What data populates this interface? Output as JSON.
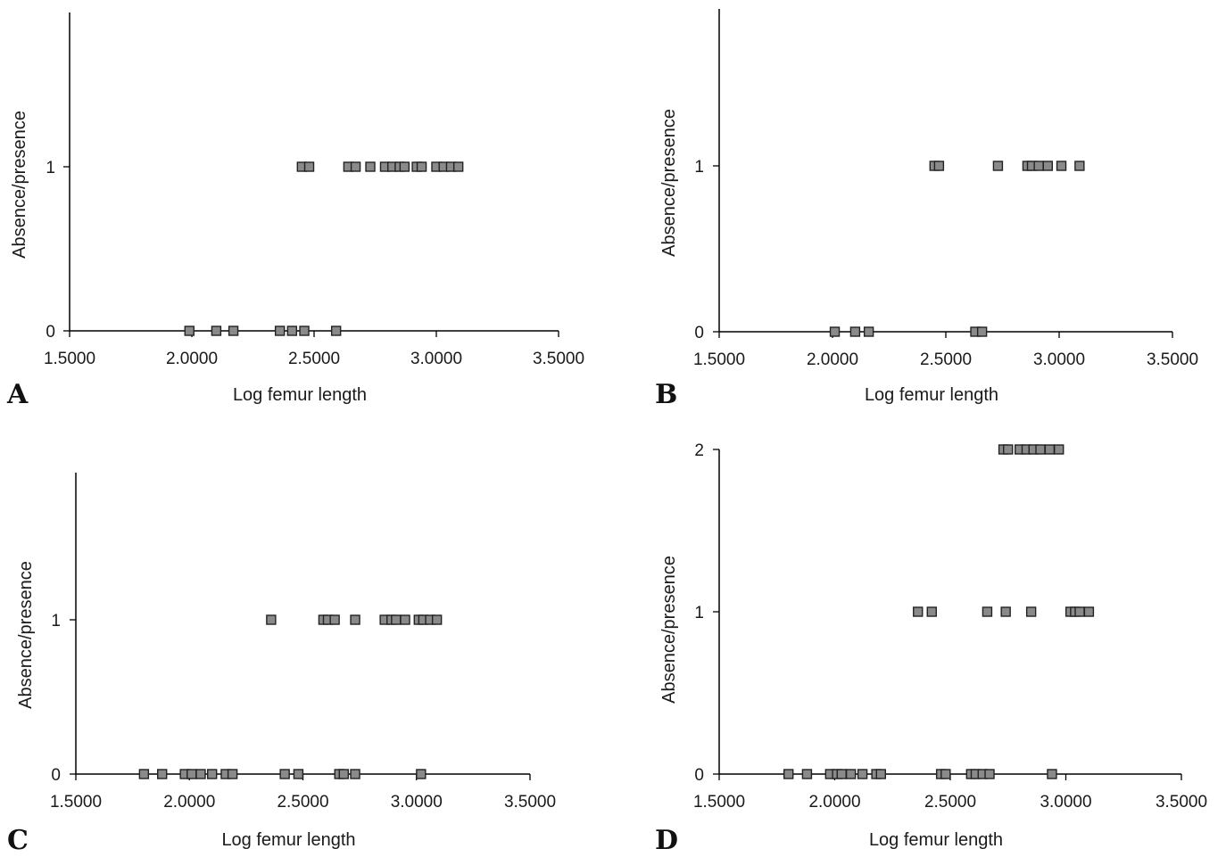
{
  "chart_data": [
    {
      "panel": "A",
      "type": "scatter",
      "xlabel": "Log femur length",
      "ylabel": "Absence/presence",
      "xlim": [
        1.5,
        3.5
      ],
      "ylim": [
        0,
        2
      ],
      "xticks": [
        "1.5000",
        "2.0000",
        "2.5000",
        "3.0000",
        "3.5000"
      ],
      "yticks": [
        "0",
        "1"
      ],
      "marker_color": "#8a8a8a",
      "points": [
        [
          1.99,
          0
        ],
        [
          2.1,
          0
        ],
        [
          2.17,
          0
        ],
        [
          2.36,
          0
        ],
        [
          2.41,
          0
        ],
        [
          2.46,
          0
        ],
        [
          2.59,
          0
        ],
        [
          2.45,
          1
        ],
        [
          2.48,
          1
        ],
        [
          2.64,
          1
        ],
        [
          2.67,
          1
        ],
        [
          2.73,
          1
        ],
        [
          2.79,
          1
        ],
        [
          2.82,
          1
        ],
        [
          2.85,
          1
        ],
        [
          2.87,
          1
        ],
        [
          2.92,
          1
        ],
        [
          2.94,
          1
        ],
        [
          3.0,
          1
        ],
        [
          3.03,
          1
        ],
        [
          3.06,
          1
        ],
        [
          3.09,
          1
        ]
      ]
    },
    {
      "panel": "B",
      "type": "scatter",
      "xlabel": "Log femur length",
      "ylabel": "Absence/presence",
      "xlim": [
        1.5,
        3.5
      ],
      "ylim": [
        0,
        2
      ],
      "xticks": [
        "1.5000",
        "2.0000",
        "2.5000",
        "3.0000",
        "3.5000"
      ],
      "yticks": [
        "0",
        "1"
      ],
      "marker_color": "#8a8a8a",
      "points": [
        [
          2.01,
          0
        ],
        [
          2.1,
          0
        ],
        [
          2.16,
          0
        ],
        [
          2.63,
          0
        ],
        [
          2.66,
          0
        ],
        [
          2.45,
          1
        ],
        [
          2.47,
          1
        ],
        [
          2.73,
          1
        ],
        [
          2.86,
          1
        ],
        [
          2.88,
          1
        ],
        [
          2.91,
          1
        ],
        [
          2.95,
          1
        ],
        [
          3.01,
          1
        ],
        [
          3.09,
          1
        ]
      ]
    },
    {
      "panel": "C",
      "type": "scatter",
      "xlabel": "Log femur length",
      "ylabel": "Absence/presence",
      "xlim": [
        1.5,
        3.5
      ],
      "ylim": [
        0,
        2
      ],
      "xticks": [
        "1.5000",
        "2.0000",
        "2.5000",
        "3.0000",
        "3.5000"
      ],
      "yticks": [
        "0",
        "1"
      ],
      "marker_color": "#8a8a8a",
      "points": [
        [
          1.8,
          0
        ],
        [
          1.88,
          0
        ],
        [
          1.98,
          0
        ],
        [
          2.01,
          0
        ],
        [
          2.05,
          0
        ],
        [
          2.1,
          0
        ],
        [
          2.16,
          0
        ],
        [
          2.19,
          0
        ],
        [
          2.42,
          0
        ],
        [
          2.48,
          0
        ],
        [
          2.66,
          0
        ],
        [
          2.68,
          0
        ],
        [
          2.73,
          0
        ],
        [
          3.02,
          0
        ],
        [
          2.36,
          1
        ],
        [
          2.59,
          1
        ],
        [
          2.61,
          1
        ],
        [
          2.64,
          1
        ],
        [
          2.73,
          1
        ],
        [
          2.86,
          1
        ],
        [
          2.89,
          1
        ],
        [
          2.91,
          1
        ],
        [
          2.95,
          1
        ],
        [
          3.01,
          1
        ],
        [
          3.03,
          1
        ],
        [
          3.06,
          1
        ],
        [
          3.09,
          1
        ]
      ]
    },
    {
      "panel": "D",
      "type": "scatter",
      "xlabel": "Log femur length",
      "ylabel": "Absence/presence",
      "xlim": [
        1.5,
        3.5
      ],
      "ylim": [
        0,
        2
      ],
      "xticks": [
        "1.5000",
        "2.0000",
        "2.5000",
        "3.0000",
        "3.5000"
      ],
      "yticks": [
        "0",
        "1",
        "2"
      ],
      "marker_color": "#8a8a8a",
      "points": [
        [
          1.8,
          0
        ],
        [
          1.88,
          0
        ],
        [
          1.98,
          0
        ],
        [
          2.01,
          0
        ],
        [
          2.03,
          0
        ],
        [
          2.07,
          0
        ],
        [
          2.12,
          0
        ],
        [
          2.18,
          0
        ],
        [
          2.2,
          0
        ],
        [
          2.46,
          0
        ],
        [
          2.48,
          0
        ],
        [
          2.59,
          0
        ],
        [
          2.61,
          0
        ],
        [
          2.64,
          0
        ],
        [
          2.67,
          0
        ],
        [
          2.94,
          0
        ],
        [
          2.36,
          1
        ],
        [
          2.42,
          1
        ],
        [
          2.66,
          1
        ],
        [
          2.74,
          1
        ],
        [
          2.85,
          1
        ],
        [
          3.02,
          1
        ],
        [
          3.04,
          1
        ],
        [
          3.06,
          1
        ],
        [
          3.1,
          1
        ],
        [
          2.73,
          2
        ],
        [
          2.75,
          2
        ],
        [
          2.8,
          2
        ],
        [
          2.83,
          2
        ],
        [
          2.86,
          2
        ],
        [
          2.89,
          2
        ],
        [
          2.93,
          2
        ],
        [
          2.97,
          2
        ]
      ]
    }
  ]
}
